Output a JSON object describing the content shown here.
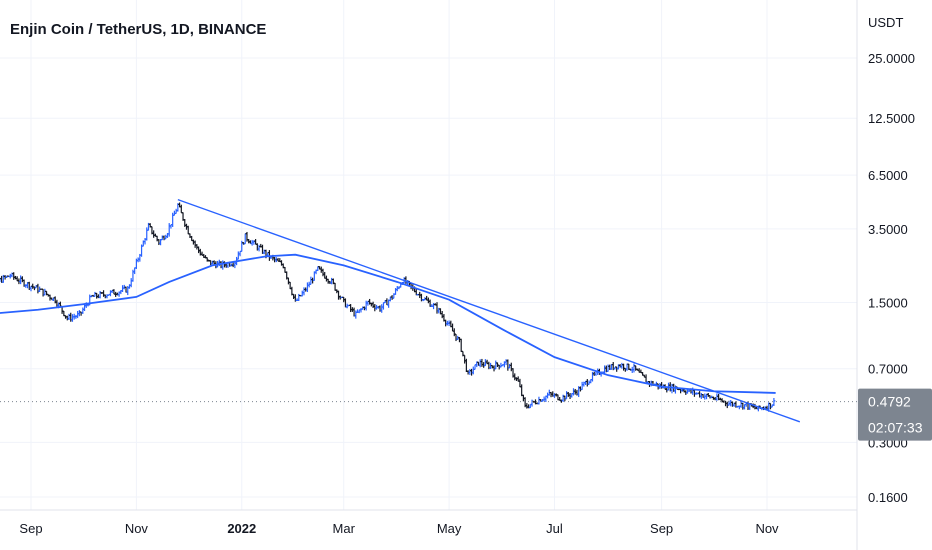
{
  "header": {
    "title": "Enjin Coin / TetherUS, 1D, BINANCE"
  },
  "price_axis": {
    "unit": "USDT",
    "ticks": [
      "25.0000",
      "12.5000",
      "6.5000",
      "3.5000",
      "1.5000",
      "0.7000",
      "0.3000",
      "0.1600"
    ]
  },
  "time_axis": {
    "ticks": [
      {
        "label": "Sep",
        "bold": false
      },
      {
        "label": "Nov",
        "bold": false
      },
      {
        "label": "2022",
        "bold": true
      },
      {
        "label": "Mar",
        "bold": false
      },
      {
        "label": "May",
        "bold": false
      },
      {
        "label": "Jul",
        "bold": false
      },
      {
        "label": "Sep",
        "bold": false
      },
      {
        "label": "Nov",
        "bold": false
      }
    ]
  },
  "last_price": {
    "price": "0.4792",
    "countdown": "02:07:33"
  },
  "colors": {
    "price_tag": "#7d8590",
    "trend_line": "#2962ff",
    "moving_average": "#2962ff",
    "bar_up": "#2962ff",
    "bar_down": "#131722",
    "grid": "#f0f3fa"
  },
  "chart_data": {
    "type": "ohlc",
    "scale": "log",
    "y_ticks": [
      25,
      12.5,
      6.5,
      3.5,
      1.5,
      0.7,
      0.3,
      0.16
    ],
    "x_ticks": [
      "2021-09-01",
      "2021-11-01",
      "2022-01-01",
      "2022-03-01",
      "2022-05-01",
      "2022-07-01",
      "2022-09-01",
      "2022-11-01"
    ],
    "x_range": [
      "2021-08-01",
      "2022-12-31"
    ],
    "series": [
      {
        "kind": "close",
        "points": [
          [
            "2021-08-01",
            1.55
          ],
          [
            "2021-08-12",
            1.9
          ],
          [
            "2021-08-20",
            2.05
          ],
          [
            "2021-08-27",
            1.9
          ],
          [
            "2021-09-05",
            1.75
          ],
          [
            "2021-09-15",
            1.55
          ],
          [
            "2021-09-22",
            1.25
          ],
          [
            "2021-09-29",
            1.3
          ],
          [
            "2021-10-06",
            1.6
          ],
          [
            "2021-10-14",
            1.65
          ],
          [
            "2021-10-21",
            1.7
          ],
          [
            "2021-10-27",
            1.75
          ],
          [
            "2021-11-02",
            2.5
          ],
          [
            "2021-11-08",
            3.6
          ],
          [
            "2021-11-14",
            3.0
          ],
          [
            "2021-11-19",
            3.4
          ],
          [
            "2021-11-25",
            4.6
          ],
          [
            "2021-12-01",
            3.4
          ],
          [
            "2021-12-06",
            2.8
          ],
          [
            "2021-12-12",
            2.4
          ],
          [
            "2021-12-20",
            2.3
          ],
          [
            "2021-12-28",
            2.4
          ],
          [
            "2022-01-03",
            3.2
          ],
          [
            "2022-01-10",
            2.85
          ],
          [
            "2022-01-18",
            2.5
          ],
          [
            "2022-01-25",
            2.3
          ],
          [
            "2022-02-01",
            1.5
          ],
          [
            "2022-02-08",
            1.8
          ],
          [
            "2022-02-14",
            2.2
          ],
          [
            "2022-02-22",
            1.9
          ],
          [
            "2022-03-01",
            1.5
          ],
          [
            "2022-03-08",
            1.3
          ],
          [
            "2022-03-15",
            1.5
          ],
          [
            "2022-03-22",
            1.4
          ],
          [
            "2022-03-29",
            1.6
          ],
          [
            "2022-04-04",
            1.95
          ],
          [
            "2022-04-10",
            1.75
          ],
          [
            "2022-04-17",
            1.55
          ],
          [
            "2022-04-24",
            1.4
          ],
          [
            "2022-05-01",
            1.15
          ],
          [
            "2022-05-07",
            0.95
          ],
          [
            "2022-05-12",
            0.65
          ],
          [
            "2022-05-18",
            0.75
          ],
          [
            "2022-05-26",
            0.72
          ],
          [
            "2022-06-03",
            0.75
          ],
          [
            "2022-06-10",
            0.6
          ],
          [
            "2022-06-14",
            0.45
          ],
          [
            "2022-06-20",
            0.48
          ],
          [
            "2022-06-28",
            0.52
          ],
          [
            "2022-07-05",
            0.5
          ],
          [
            "2022-07-14",
            0.54
          ],
          [
            "2022-07-22",
            0.63
          ],
          [
            "2022-07-30",
            0.7
          ],
          [
            "2022-08-08",
            0.73
          ],
          [
            "2022-08-16",
            0.7
          ],
          [
            "2022-08-24",
            0.6
          ],
          [
            "2022-09-01",
            0.57
          ],
          [
            "2022-09-10",
            0.56
          ],
          [
            "2022-09-20",
            0.53
          ],
          [
            "2022-10-01",
            0.5
          ],
          [
            "2022-10-10",
            0.47
          ],
          [
            "2022-10-20",
            0.46
          ],
          [
            "2022-10-27",
            0.44
          ],
          [
            "2022-11-02",
            0.46
          ],
          [
            "2022-11-06",
            0.4792
          ]
        ]
      },
      {
        "kind": "moving_average",
        "points": [
          [
            "2021-08-01",
            1.3
          ],
          [
            "2021-09-05",
            1.38
          ],
          [
            "2021-10-01",
            1.47
          ],
          [
            "2021-11-01",
            1.6
          ],
          [
            "2021-11-20",
            1.9
          ],
          [
            "2021-12-15",
            2.3
          ],
          [
            "2022-01-15",
            2.55
          ],
          [
            "2022-02-01",
            2.6
          ],
          [
            "2022-03-01",
            2.3
          ],
          [
            "2022-04-01",
            1.9
          ],
          [
            "2022-05-01",
            1.55
          ],
          [
            "2022-06-01",
            1.1
          ],
          [
            "2022-07-01",
            0.8
          ],
          [
            "2022-08-01",
            0.65
          ],
          [
            "2022-09-01",
            0.57
          ],
          [
            "2022-10-01",
            0.54
          ],
          [
            "2022-11-06",
            0.53
          ]
        ]
      },
      {
        "kind": "trend_line",
        "points": [
          [
            "2021-11-25",
            4.9
          ],
          [
            "2022-11-20",
            0.38
          ]
        ]
      }
    ]
  }
}
